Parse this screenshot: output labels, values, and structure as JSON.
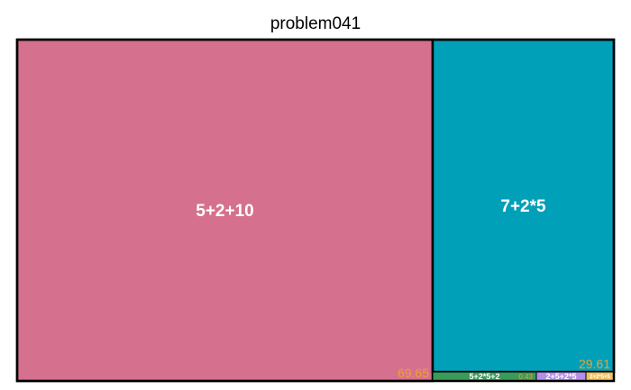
{
  "chart_data": {
    "type": "treemap",
    "title": "problem041",
    "nodes": [
      {
        "id": "a",
        "label": "5+2+10",
        "color": "#d5708e",
        "value": 69.65,
        "value_label": "69.65"
      },
      {
        "id": "b",
        "label": "7+2*5",
        "color": "#00a0b8",
        "value": 29.61,
        "value_label": "29.61"
      },
      {
        "id": "c",
        "label": "5+2*5+2",
        "color": "#3a9a5a",
        "value": 0.43,
        "value_label": "0.43"
      },
      {
        "id": "d",
        "label": "2+5+2*5",
        "color": "#b48ee8",
        "value": 0.2
      },
      {
        "id": "e",
        "label": "2+2*5+5",
        "color": "#f2c060",
        "value": 0.11
      }
    ]
  }
}
